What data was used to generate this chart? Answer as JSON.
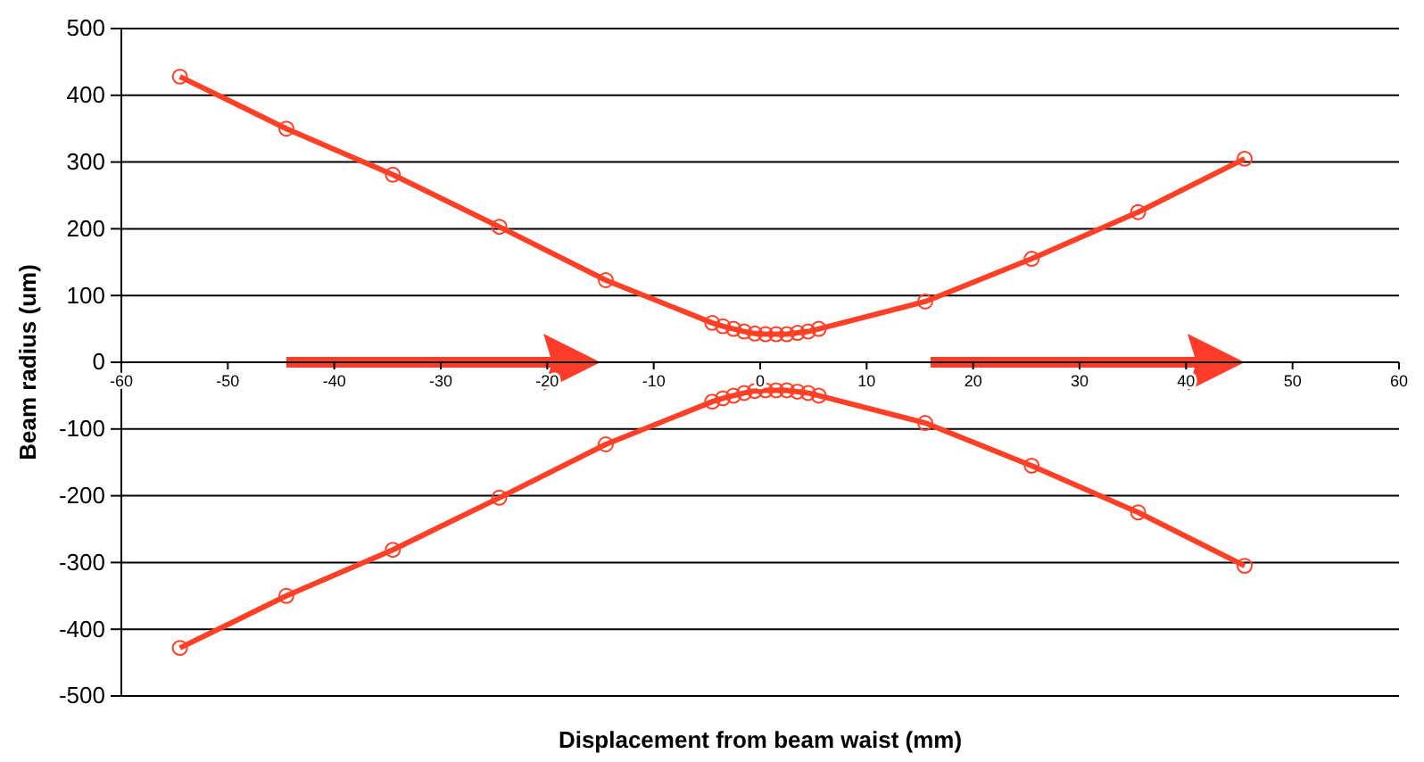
{
  "chart_data": {
    "type": "line",
    "xlabel": "Displacement from beam waist (mm)",
    "ylabel": "Beam radius (um)",
    "x": [
      -54.5,
      -44.5,
      -34.5,
      -24.5,
      -14.5,
      -4.5,
      -3.5,
      -2.5,
      -1.5,
      -0.5,
      0.5,
      1.5,
      2.5,
      3.5,
      4.5,
      5.5,
      15.5,
      25.5,
      35.5,
      45.5
    ],
    "series": [
      {
        "color": "#ff4027",
        "values": [
          428,
          350,
          281,
          203,
          123,
          59,
          54,
          50,
          46,
          43,
          42,
          42,
          42,
          44,
          46,
          50,
          91,
          155,
          225,
          305
        ]
      },
      {
        "color": "#ff4027",
        "values": [
          -428,
          -350,
          -281,
          -203,
          -123,
          -59,
          -54,
          -50,
          -46,
          -43,
          -42,
          -42,
          -42,
          -44,
          -46,
          -50,
          -91,
          -155,
          -225,
          -305
        ]
      }
    ],
    "xlim": [
      -60,
      60
    ],
    "xticks": [
      -60,
      -50,
      -40,
      -30,
      -20,
      -10,
      0,
      10,
      20,
      30,
      40,
      50,
      60
    ],
    "ylim": [
      -500,
      500
    ],
    "yticks": [
      -500,
      -400,
      -300,
      -200,
      -100,
      0,
      100,
      200,
      300,
      400,
      500
    ],
    "grid": "y",
    "marker": "circle",
    "line_style": "solid"
  }
}
